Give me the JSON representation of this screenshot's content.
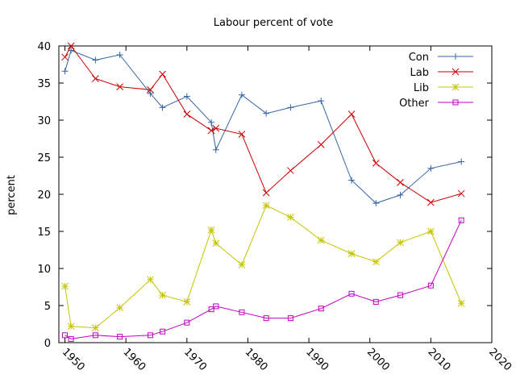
{
  "chart_data": {
    "type": "line",
    "title": "Labour percent of vote",
    "xlabel": "",
    "ylabel": "percent",
    "xlim": [
      1949,
      2020
    ],
    "ylim": [
      0,
      40
    ],
    "xticks": [
      1950,
      1960,
      1970,
      1980,
      1990,
      2000,
      2010,
      2020
    ],
    "yticks": [
      0,
      5,
      10,
      15,
      20,
      25,
      30,
      35,
      40
    ],
    "grid": false,
    "legend_position": "top-right",
    "x": [
      1950,
      1951,
      1955,
      1959,
      1964,
      1966,
      1970,
      1974,
      1974.75,
      1979,
      1983,
      1987,
      1992,
      1997,
      2001,
      2005,
      2010,
      2015
    ],
    "series": [
      {
        "name": "Con",
        "color": "#3465a4",
        "marker": "plus",
        "values": [
          36.6,
          39.4,
          38.1,
          38.8,
          33.6,
          31.7,
          33.2,
          29.7,
          26.0,
          33.4,
          30.9,
          31.7,
          32.6,
          21.9,
          18.8,
          19.9,
          23.5,
          24.4
        ]
      },
      {
        "name": "Lab",
        "color": "#cc0000",
        "marker": "cross",
        "values": [
          38.5,
          40.0,
          35.6,
          34.5,
          34.1,
          36.2,
          30.8,
          28.6,
          28.9,
          28.1,
          20.2,
          23.2,
          26.7,
          30.8,
          24.2,
          21.6,
          18.9,
          20.1
        ]
      },
      {
        "name": "Lib",
        "color": "#c4c400",
        "marker": "star",
        "values": [
          7.6,
          2.2,
          2.0,
          4.7,
          8.5,
          6.4,
          5.5,
          15.2,
          13.4,
          10.5,
          18.5,
          16.9,
          13.8,
          12.0,
          10.9,
          13.5,
          15.0,
          5.3
        ]
      },
      {
        "name": "Other",
        "color": "#c000c0",
        "marker": "square",
        "values": [
          1.0,
          0.5,
          1.0,
          0.8,
          1.0,
          1.5,
          2.7,
          4.5,
          4.9,
          4.1,
          3.3,
          3.3,
          4.6,
          6.6,
          5.5,
          6.4,
          7.7,
          16.5
        ]
      }
    ]
  }
}
